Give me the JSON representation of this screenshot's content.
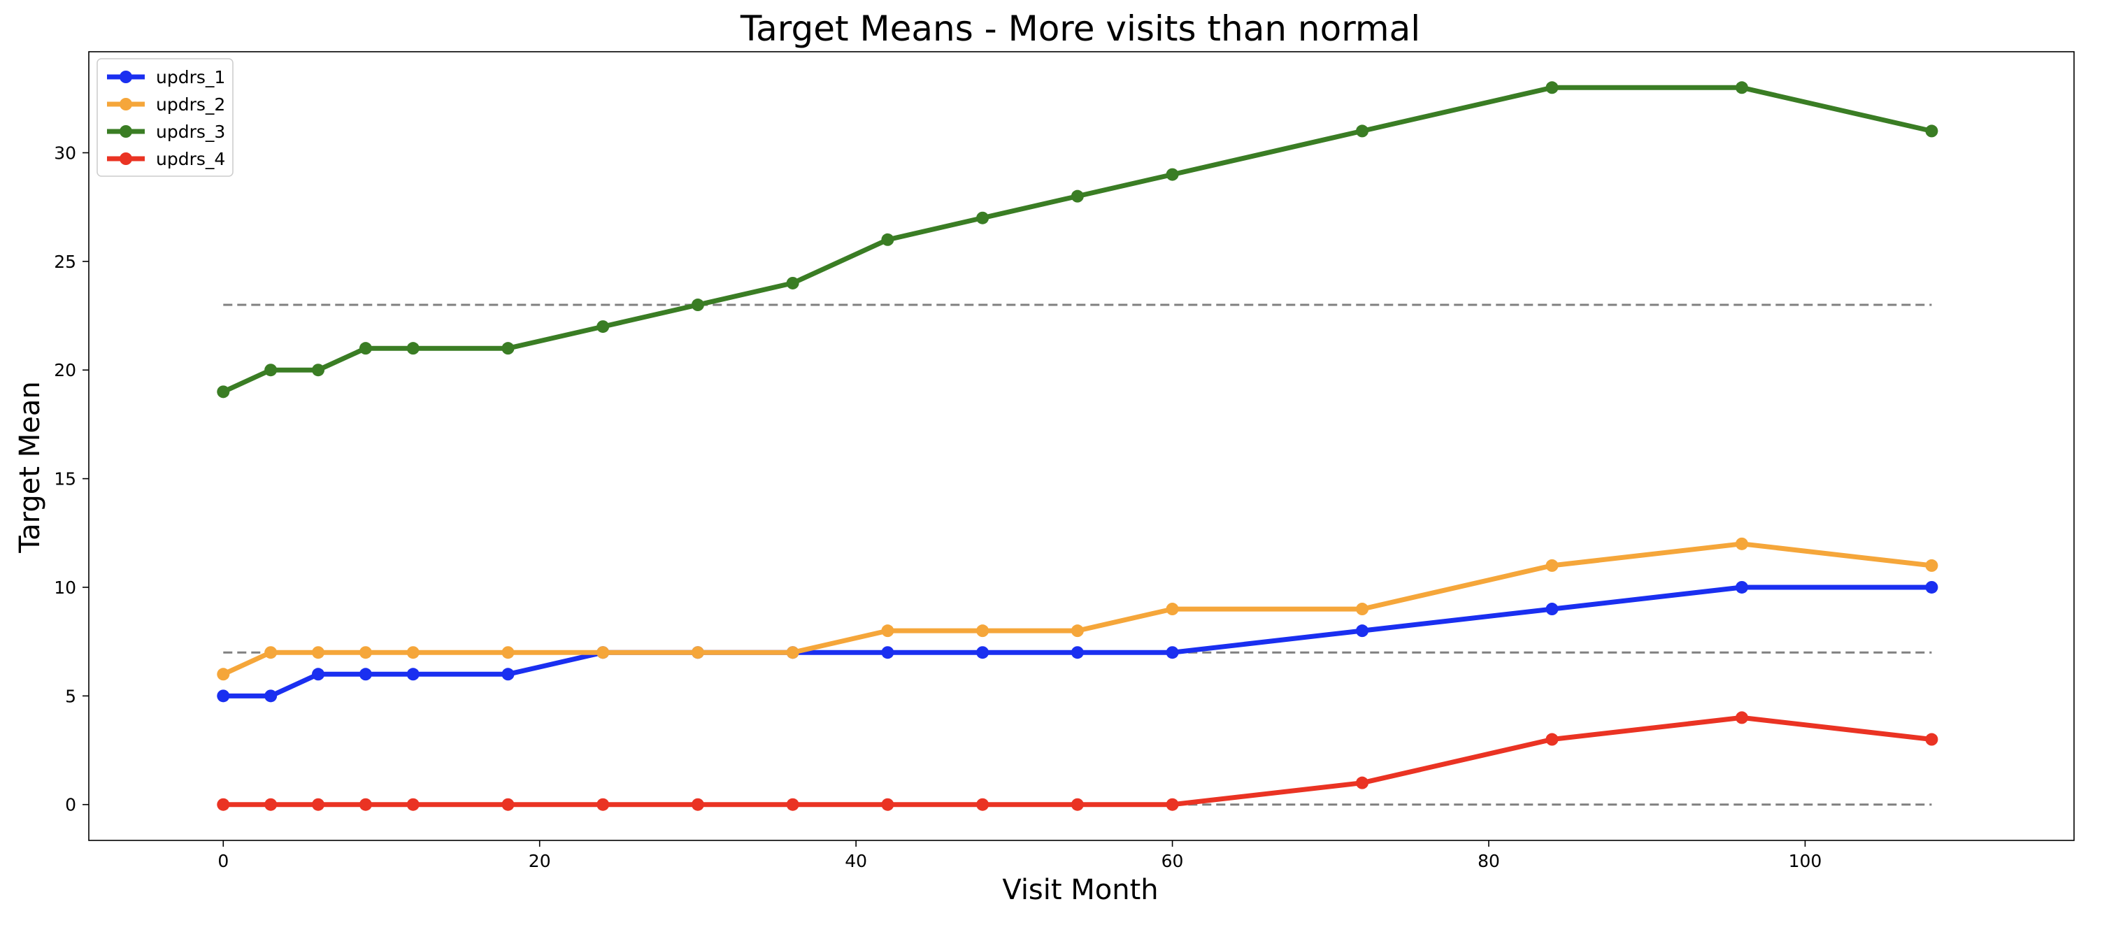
{
  "chart_data": {
    "type": "line",
    "title": "Target Means - More visits than normal",
    "xlabel": "Visit Month",
    "ylabel": "Target Mean",
    "xlim": [
      -8.5,
      117
    ],
    "ylim": [
      -1.65,
      34.65
    ],
    "xticks": [
      0,
      20,
      40,
      60,
      80,
      100
    ],
    "yticks": [
      0,
      5,
      10,
      15,
      20,
      25,
      30
    ],
    "x": [
      0,
      3,
      6,
      9,
      12,
      18,
      24,
      30,
      36,
      42,
      48,
      54,
      60,
      72,
      84,
      96,
      108
    ],
    "series": [
      {
        "name": "updrs_1",
        "color": "#1a2ff0",
        "values": [
          5,
          5,
          6,
          6,
          6,
          6,
          7,
          7,
          7,
          7,
          7,
          7,
          7,
          8,
          9,
          10,
          10
        ]
      },
      {
        "name": "updrs_2",
        "color": "#f5a63a",
        "values": [
          6,
          7,
          7,
          7,
          7,
          7,
          7,
          7,
          7,
          8,
          8,
          8,
          9,
          9,
          11,
          12,
          11
        ]
      },
      {
        "name": "updrs_3",
        "color": "#3a7d24",
        "values": [
          19,
          20,
          20,
          21,
          21,
          21,
          22,
          23,
          24,
          26,
          27,
          28,
          29,
          31,
          33,
          33,
          31
        ]
      },
      {
        "name": "updrs_4",
        "color": "#ea3323",
        "values": [
          0,
          0,
          0,
          0,
          0,
          0,
          0,
          0,
          0,
          0,
          0,
          0,
          0,
          1,
          3,
          4,
          3
        ]
      }
    ],
    "reference_lines": {
      "style": "dashed",
      "color": "#808080",
      "x_range": [
        0,
        108
      ],
      "y_values": [
        23,
        7,
        0
      ]
    },
    "legend": {
      "position": "upper-left"
    },
    "grid": false
  }
}
